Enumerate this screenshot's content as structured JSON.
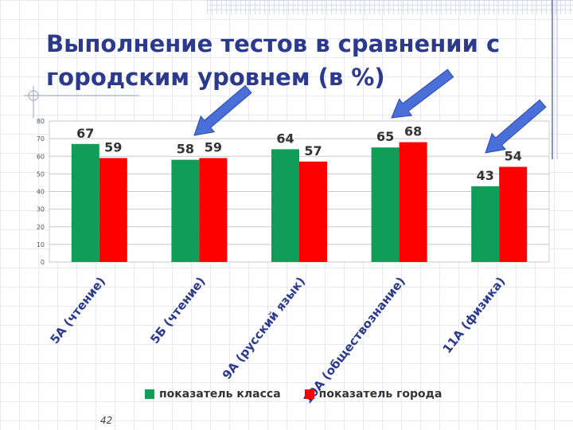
{
  "title": "Выполнение тестов  в сравнении с городским уровнем (в %)",
  "page_number": "42",
  "colors": {
    "class": "#0f9d58",
    "city": "#ff0000",
    "arrow": "#4a6fd8",
    "title": "#2b3a8c"
  },
  "chart_data": {
    "type": "bar",
    "title": "",
    "xlabel": "",
    "ylabel": "",
    "ylim": [
      0,
      80
    ],
    "yticks": [
      "0",
      "10",
      "20",
      "30",
      "40",
      "50",
      "60",
      "70",
      "80"
    ],
    "grid": true,
    "legend_position": "bottom",
    "categories": [
      "5А (чтение)",
      "5Б (чтение)",
      "9А (русский язык)",
      "10А (обществознание)",
      "11А (физика)"
    ],
    "series": [
      {
        "name": "показатель класса",
        "values": [
          67,
          58,
          64,
          65,
          43
        ],
        "labels": [
          "67",
          "58",
          "64",
          "65",
          "43"
        ]
      },
      {
        "name": "показатель города",
        "values": [
          59,
          59,
          57,
          68,
          54
        ],
        "labels": [
          "59",
          "59",
          "57",
          "68",
          "54"
        ]
      }
    ]
  }
}
